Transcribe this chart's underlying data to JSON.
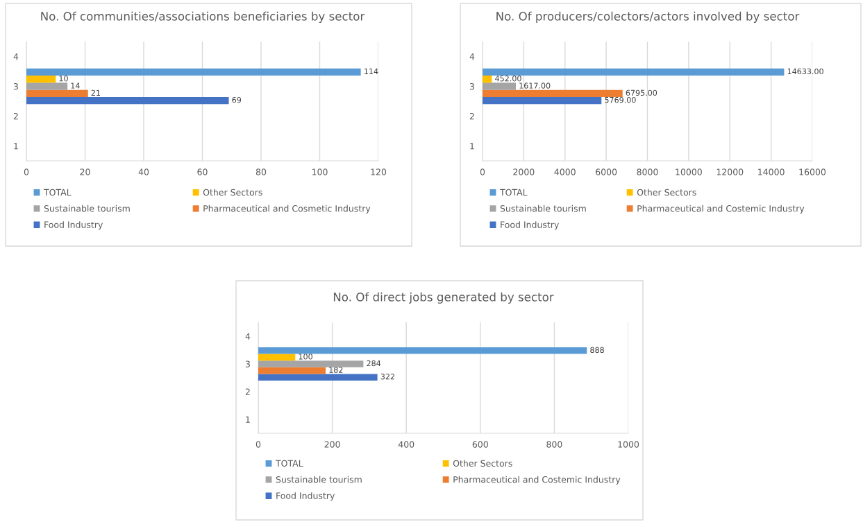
{
  "chart_data": [
    {
      "type": "bar",
      "orientation": "horizontal",
      "title": "No. Of communities/associations beneficiaries by sector",
      "categories": [
        "4",
        "3",
        "2",
        "1"
      ],
      "xlim": [
        0,
        120
      ],
      "xticks": [
        0,
        20,
        40,
        60,
        80,
        100,
        120
      ],
      "grid": "x",
      "legend": "bottom",
      "data_labels": true,
      "series": [
        {
          "name": "Food Industry",
          "color": "#4472c4",
          "values": [
            null,
            69,
            null,
            null
          ]
        },
        {
          "name": "Pharmaceutical and Cosmetic Industry",
          "color": "#ed7d31",
          "values": [
            null,
            21,
            null,
            null
          ]
        },
        {
          "name": "Sustainable tourism",
          "color": "#a5a5a5",
          "values": [
            null,
            14,
            null,
            null
          ]
        },
        {
          "name": "Other Sectors",
          "color": "#ffc000",
          "values": [
            null,
            10,
            null,
            null
          ]
        },
        {
          "name": "TOTAL",
          "color": "#5b9bd5",
          "values": [
            null,
            114,
            null,
            null
          ]
        }
      ]
    },
    {
      "type": "bar",
      "orientation": "horizontal",
      "title": "No. Of producers/colectors/actors involved by sector",
      "categories": [
        "4",
        "3",
        "2",
        "1"
      ],
      "xlim": [
        0,
        16000
      ],
      "xticks": [
        0,
        2000,
        4000,
        6000,
        8000,
        10000,
        12000,
        14000,
        16000
      ],
      "grid": "x",
      "legend": "bottom",
      "series": [
        {
          "name": "Food Industry",
          "color": "#4472c4",
          "values": [
            null,
            5769,
            null,
            null
          ],
          "value_labels": [
            null,
            "5769.00",
            null,
            null
          ]
        },
        {
          "name": "Pharmaceutical and Costemic Industry",
          "color": "#ed7d31",
          "values": [
            null,
            6795,
            null,
            null
          ],
          "value_labels": [
            null,
            "6795.00",
            null,
            null
          ]
        },
        {
          "name": "Sustainable tourism",
          "color": "#a5a5a5",
          "values": [
            null,
            1617,
            null,
            null
          ],
          "value_labels": [
            null,
            "1617.00",
            null,
            null
          ]
        },
        {
          "name": "Other Sectors",
          "color": "#ffc000",
          "values": [
            null,
            452,
            null,
            null
          ],
          "value_labels": [
            null,
            "452.00",
            null,
            null
          ]
        },
        {
          "name": "TOTAL",
          "color": "#5b9bd5",
          "values": [
            null,
            14633,
            null,
            null
          ],
          "value_labels": [
            null,
            "14633.00",
            null,
            null
          ]
        }
      ]
    },
    {
      "type": "bar",
      "orientation": "horizontal",
      "title": "No. Of direct jobs generated by sector",
      "categories": [
        "4",
        "3",
        "2",
        "1"
      ],
      "xlim": [
        0,
        1000
      ],
      "xticks": [
        0,
        200,
        400,
        600,
        800,
        1000
      ],
      "grid": "x",
      "legend": "bottom",
      "data_labels": true,
      "series": [
        {
          "name": "Food Industry",
          "color": "#4472c4",
          "values": [
            null,
            322,
            null,
            null
          ]
        },
        {
          "name": "Pharmaceutical and Costemic Industry",
          "color": "#ed7d31",
          "values": [
            null,
            182,
            null,
            null
          ]
        },
        {
          "name": "Sustainable tourism",
          "color": "#a5a5a5",
          "values": [
            null,
            284,
            null,
            null
          ]
        },
        {
          "name": "Other Sectors",
          "color": "#ffc000",
          "values": [
            null,
            100,
            null,
            null
          ]
        },
        {
          "name": "TOTAL",
          "color": "#5b9bd5",
          "values": [
            null,
            888,
            null,
            null
          ]
        }
      ]
    }
  ]
}
